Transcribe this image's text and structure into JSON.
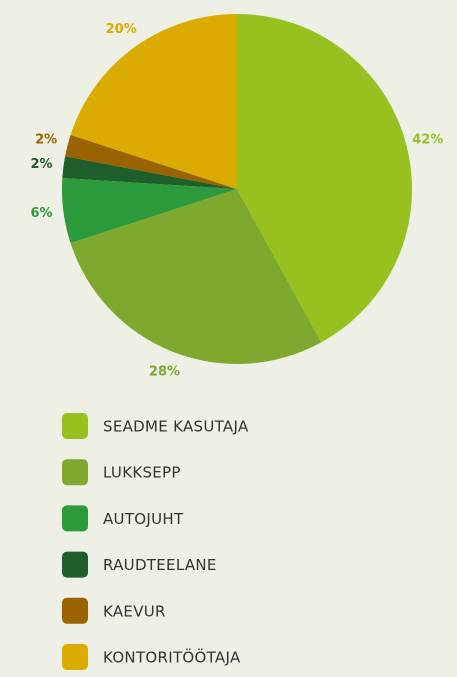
{
  "chart_data": {
    "type": "pie",
    "categories": [
      "SEADME KASUTAJA",
      "LUKKSEPP",
      "AUTOJUHT",
      "RAUDTEELANE",
      "KAEVUR",
      "KONTORITÖÖTAJA"
    ],
    "values": [
      42,
      28,
      6,
      2,
      2,
      20
    ],
    "value_labels": [
      "42%",
      "28%",
      "6%",
      "2%",
      "2%",
      "20%"
    ],
    "colors": [
      "#97c11f",
      "#7fa92e",
      "#2a9a3a",
      "#1d5e2a",
      "#9a6300",
      "#dcab00"
    ]
  }
}
